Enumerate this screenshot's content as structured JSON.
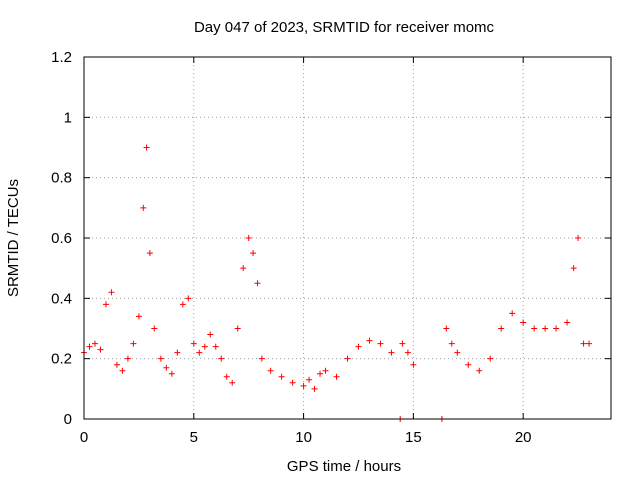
{
  "chart_data": {
    "type": "scatter",
    "title": "Day 047 of 2023, SRMTID for receiver momc",
    "xlabel": "GPS time / hours",
    "ylabel": "SRMTID / TECUs",
    "xlim": [
      0,
      24
    ],
    "ylim": [
      0,
      1.2
    ],
    "xticks": [
      0,
      5,
      10,
      15,
      20
    ],
    "xtick_labels": [
      "0",
      "5",
      "10",
      "15",
      "20"
    ],
    "yticks": [
      0,
      0.2,
      0.4,
      0.6,
      0.8,
      1,
      1.2
    ],
    "ytick_labels": [
      "0",
      "0.2",
      "0.4",
      "0.6",
      "0.8",
      "1",
      "1.2"
    ],
    "grid": true,
    "marker": "+",
    "color": "#ff0000",
    "series": [
      {
        "name": "SRMTID",
        "x": [
          0.0,
          0.25,
          0.5,
          0.75,
          1.0,
          1.25,
          1.5,
          1.75,
          2.0,
          2.25,
          2.5,
          2.7,
          2.85,
          3.0,
          3.2,
          3.5,
          3.75,
          4.0,
          4.25,
          4.5,
          4.75,
          5.0,
          5.25,
          5.5,
          5.75,
          6.0,
          6.25,
          6.5,
          6.75,
          7.0,
          7.25,
          7.5,
          7.7,
          7.9,
          8.1,
          8.5,
          9.0,
          9.5,
          10.0,
          10.25,
          10.5,
          10.75,
          11.0,
          11.5,
          12.0,
          12.5,
          13.0,
          13.5,
          14.0,
          14.5,
          14.75,
          15.0,
          16.5,
          16.75,
          17.0,
          17.5,
          18.0,
          18.5,
          19.0,
          19.5,
          20.0,
          20.5,
          21.0,
          21.5,
          22.0,
          22.3,
          22.5,
          22.75,
          23.0
        ],
        "y": [
          0.22,
          0.24,
          0.25,
          0.23,
          0.38,
          0.42,
          0.18,
          0.16,
          0.2,
          0.25,
          0.34,
          0.7,
          0.9,
          0.55,
          0.3,
          0.2,
          0.17,
          0.15,
          0.22,
          0.38,
          0.4,
          0.25,
          0.22,
          0.24,
          0.28,
          0.24,
          0.2,
          0.14,
          0.12,
          0.3,
          0.5,
          0.6,
          0.55,
          0.45,
          0.2,
          0.16,
          0.14,
          0.12,
          0.11,
          0.13,
          0.1,
          0.15,
          0.16,
          0.14,
          0.2,
          0.24,
          0.26,
          0.25,
          0.22,
          0.25,
          0.22,
          0.18,
          0.3,
          0.25,
          0.22,
          0.18,
          0.16,
          0.2,
          0.3,
          0.35,
          0.32,
          0.3,
          0.3,
          0.3,
          0.32,
          0.5,
          0.6,
          0.25,
          0.25
        ]
      },
      {
        "name": "zero-level markers",
        "x": [
          14.4,
          16.3
        ],
        "y": [
          0.0,
          0.0
        ]
      }
    ]
  }
}
